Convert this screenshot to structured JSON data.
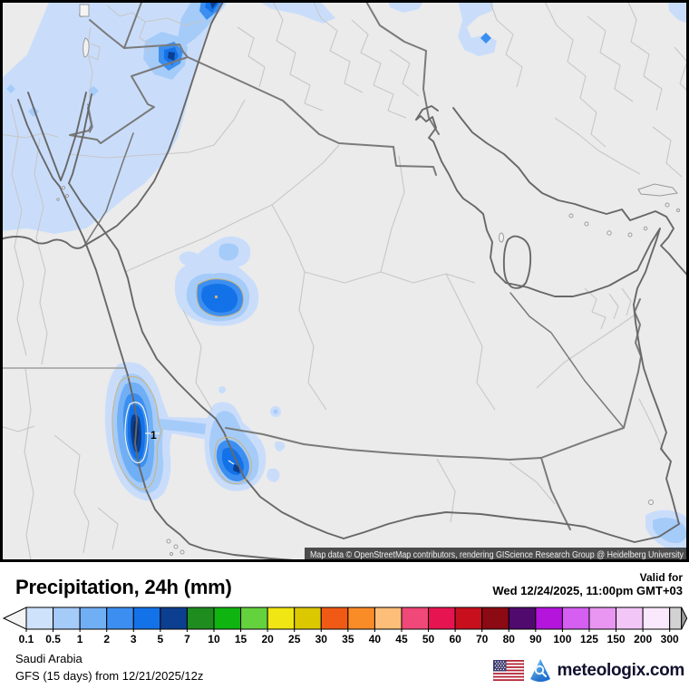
{
  "header": {
    "title": "Precipitation, 24h (mm)",
    "valid_for_label": "Valid for",
    "valid_datetime": "Wed 12/24/2025, 11:00pm GMT+03"
  },
  "map": {
    "contour_label": "1",
    "attribution": "Map data © OpenStreetMap contributors, rendering GIScience Research Group @ Heidelberg University",
    "precip_palette_on_map": [
      "#c9ddfb",
      "#a5cbf9",
      "#71aff5",
      "#3c8ff0",
      "#1472e8",
      "#0c3f8f"
    ],
    "background_color": "#ebebeb"
  },
  "legend": {
    "stops": [
      {
        "label": "0.1",
        "color": "#cfe2fc"
      },
      {
        "label": "0.5",
        "color": "#a5cbf9"
      },
      {
        "label": "1",
        "color": "#71aff5"
      },
      {
        "label": "2",
        "color": "#3c8ff0"
      },
      {
        "label": "3",
        "color": "#1472e8"
      },
      {
        "label": "5",
        "color": "#0c3f8f"
      },
      {
        "label": "7",
        "color": "#1e8c1e"
      },
      {
        "label": "10",
        "color": "#10b410"
      },
      {
        "label": "15",
        "color": "#64d23c"
      },
      {
        "label": "20",
        "color": "#f0e614"
      },
      {
        "label": "25",
        "color": "#dcc800"
      },
      {
        "label": "30",
        "color": "#f05a14"
      },
      {
        "label": "35",
        "color": "#fa8c28"
      },
      {
        "label": "40",
        "color": "#fcbe78"
      },
      {
        "label": "45",
        "color": "#f04878"
      },
      {
        "label": "50",
        "color": "#e61450"
      },
      {
        "label": "60",
        "color": "#c80f1e"
      },
      {
        "label": "70",
        "color": "#8c0a14"
      },
      {
        "label": "80",
        "color": "#500a6e"
      },
      {
        "label": "90",
        "color": "#b414dc"
      },
      {
        "label": "100",
        "color": "#d45ff0"
      },
      {
        "label": "125",
        "color": "#e896f2"
      },
      {
        "label": "150",
        "color": "#f3c6f8"
      },
      {
        "label": "200",
        "color": "#fae8fc"
      }
    ],
    "end_label": "300",
    "overflow_color": "#d2d2d2",
    "left_arrow_color": "#f4f4f4",
    "right_arrow_color": "#9c9c9c"
  },
  "footer": {
    "region": "Saudi Arabia",
    "model_run": "GFS (15 days) from 12/21/2025/12z",
    "brand": "meteologix.com"
  }
}
